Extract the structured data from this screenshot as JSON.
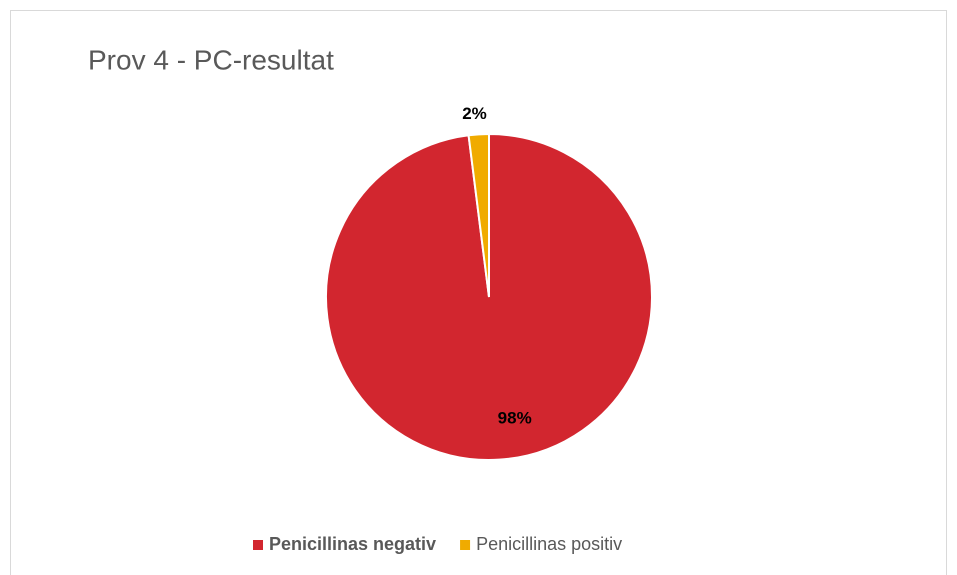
{
  "chart_data": {
    "type": "pie",
    "title": "Prov 4 - PC-resultat",
    "categories": [
      "Penicillinas negativ",
      "Penicillinas positiv"
    ],
    "values": [
      98,
      2
    ],
    "value_labels": [
      "98%",
      "2%"
    ],
    "colors": [
      "#d2262f",
      "#f0ab00"
    ],
    "legend": "bottom"
  }
}
